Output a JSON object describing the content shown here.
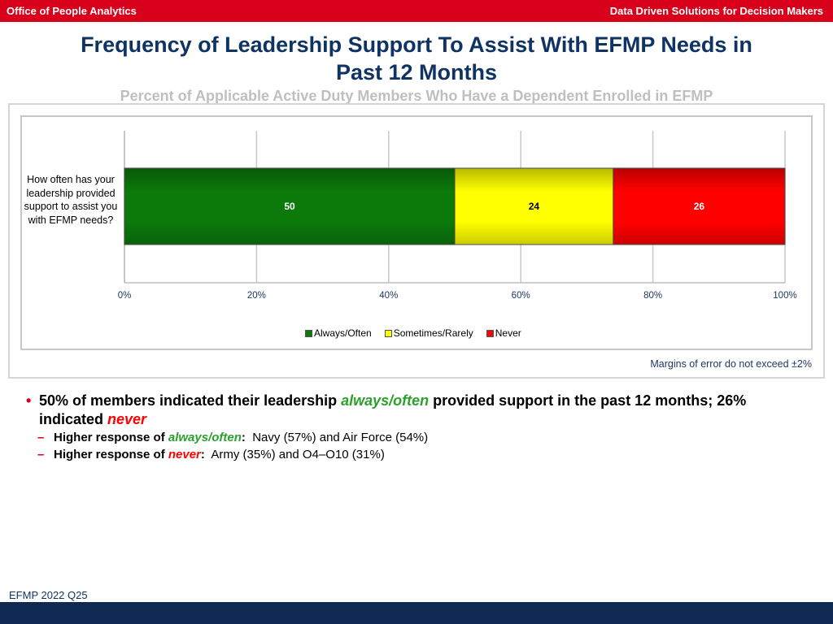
{
  "header": {
    "left_text": "Office of People Analytics",
    "right_text": "Data Driven Solutions for Decision Makers"
  },
  "title_line1": "Frequency of Leadership Support To Assist With EFMP Needs in",
  "title_line2": "Past 12 Months",
  "subtitle": "Percent of Applicable Active Duty Members Who Have a Dependent Enrolled in EFMP",
  "chart_data": {
    "type": "bar",
    "orientation": "horizontal",
    "stacked": true,
    "categories": [
      "How often has your leadership provided support to assist you with EFMP needs?"
    ],
    "series": [
      {
        "name": "Always/Often",
        "values": [
          50
        ],
        "color": "#0b7a0b"
      },
      {
        "name": "Sometimes/Rarely",
        "values": [
          24
        ],
        "color": "#ffff00"
      },
      {
        "name": "Never",
        "values": [
          26
        ],
        "color": "#ff0000"
      }
    ],
    "xlim": [
      0,
      100
    ],
    "xticks": [
      "0%",
      "20%",
      "40%",
      "60%",
      "80%",
      "100%"
    ],
    "grid": true,
    "legend": "bottom"
  },
  "margin_note": "Margins of error do not exceed ±2%",
  "bullets": {
    "main_pre": "50% of members indicated their leadership ",
    "main_always": "always/often",
    "main_mid": " provided support in the past 12 months; 26% indicated ",
    "main_never": "never",
    "sub1_pre": "Higher response of ",
    "sub1_em": "always/often",
    "sub1_colon": ":",
    "sub1_text": "  Navy (57%) and Air Force (54%)",
    "sub2_pre": "Higher response of ",
    "sub2_em": "never",
    "sub2_colon": ":",
    "sub2_text": "  Army (35%) and O4–O10 (31%)"
  },
  "footer_code": "EFMP 2022 Q25"
}
